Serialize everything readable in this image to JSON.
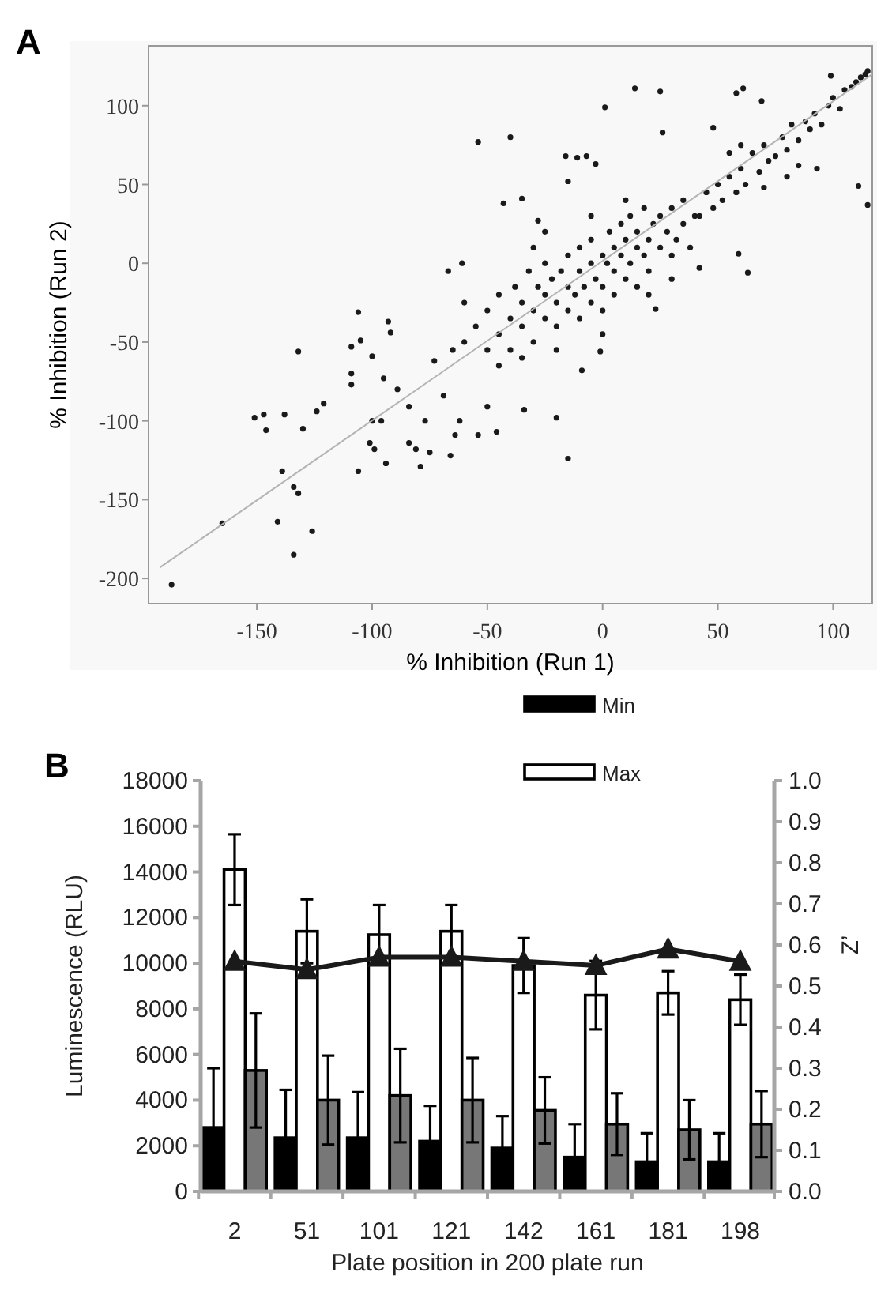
{
  "chart_data": [
    {
      "type": "scatter",
      "title": "A",
      "xlabel": "% Inhibition (Run 1)",
      "ylabel": "% Inhibition (Run 2)",
      "xlim": [
        -197,
        117
      ],
      "ylim": [
        -216,
        138
      ],
      "xticks": [
        -150,
        -100,
        -50,
        0,
        50,
        100
      ],
      "yticks": [
        -200,
        -150,
        -100,
        -50,
        0,
        50,
        100
      ],
      "grid": false,
      "marker": "circle",
      "series": [
        {
          "type": "scatter",
          "color": "#1a1a1a",
          "x": [
            -187,
            -165,
            -141,
            -134,
            -126,
            -139,
            -134,
            -132,
            -151,
            -147,
            -146,
            -138,
            -130,
            -132,
            -121,
            -124,
            -106,
            -109,
            -105,
            -109,
            -109,
            -100,
            -100,
            -101,
            -99,
            -106,
            -94,
            -96,
            -93,
            -92,
            -95,
            -89,
            -84,
            -84,
            -81,
            -79,
            -75,
            -77,
            -73,
            -69,
            -66,
            -64,
            -62,
            -67,
            -61,
            -54,
            -40,
            -54,
            -46,
            -50,
            -34,
            -20,
            -15,
            -43,
            -35,
            -28,
            -15,
            -16,
            -11,
            -7,
            -3,
            1,
            14,
            25,
            26,
            48,
            58,
            61,
            69,
            99,
            111,
            115,
            93,
            63,
            59,
            42,
            -9,
            23,
            -1,
            -55,
            -50,
            -50,
            -45,
            -45,
            -40,
            -40,
            -38,
            -35,
            -35,
            -32,
            -30,
            -30,
            -28,
            -25,
            -25,
            -25,
            -22,
            -20,
            -20,
            -18,
            -15,
            -15,
            -15,
            -12,
            -10,
            -10,
            -10,
            -8,
            -5,
            -5,
            -5,
            -3,
            0,
            0,
            0,
            2,
            3,
            5,
            5,
            5,
            8,
            8,
            10,
            10,
            12,
            12,
            15,
            15,
            15,
            18,
            18,
            20,
            20,
            22,
            25,
            25,
            28,
            30,
            30,
            32,
            35,
            35,
            38,
            40,
            -45,
            -20,
            -35,
            0,
            20,
            -60,
            -60,
            -65,
            10,
            -5,
            -25,
            30,
            -30,
            42,
            45,
            48,
            50,
            52,
            55,
            58,
            60,
            62,
            65,
            68,
            70,
            72,
            75,
            78,
            80,
            82,
            85,
            88,
            90,
            92,
            95,
            98,
            100,
            103,
            105,
            108,
            110,
            112,
            114,
            115,
            80,
            85,
            70,
            60,
            55
          ],
          "values": [
            -204,
            -165,
            -164,
            -185,
            -170,
            -132,
            -142,
            -146,
            -98,
            -96,
            -106,
            -96,
            -105,
            -56,
            -89,
            -94,
            -31,
            -53,
            -49,
            -70,
            -77,
            -59,
            -100,
            -114,
            -118,
            -132,
            -127,
            -100,
            -37,
            -44,
            -73,
            -80,
            -91,
            -114,
            -118,
            -129,
            -120,
            -100,
            -62,
            -84,
            -122,
            -109,
            -100,
            -5,
            0,
            77,
            80,
            -109,
            -107,
            -91,
            -93,
            -98,
            -124,
            38,
            41,
            27,
            52,
            68,
            67,
            68,
            63,
            99,
            111,
            109,
            83,
            86,
            108,
            111,
            103,
            119,
            49,
            37,
            60,
            -6,
            6,
            -3,
            -68,
            -29,
            -56,
            -40,
            -30,
            -55,
            -45,
            -20,
            -35,
            -55,
            -15,
            -40,
            -25,
            -5,
            -30,
            -50,
            -15,
            -35,
            -20,
            0,
            -10,
            -25,
            -40,
            -5,
            -15,
            -30,
            5,
            -20,
            -5,
            -35,
            10,
            -15,
            0,
            -25,
            15,
            -10,
            5,
            -15,
            -30,
            0,
            20,
            -5,
            10,
            -20,
            5,
            25,
            -10,
            15,
            0,
            30,
            10,
            -15,
            20,
            5,
            35,
            15,
            -5,
            25,
            10,
            30,
            20,
            5,
            35,
            15,
            25,
            40,
            10,
            30,
            -65,
            -55,
            -60,
            -45,
            -20,
            -50,
            -25,
            -55,
            40,
            30,
            20,
            -10,
            10,
            30,
            45,
            35,
            50,
            40,
            55,
            45,
            60,
            50,
            70,
            58,
            75,
            65,
            68,
            80,
            72,
            88,
            78,
            90,
            85,
            95,
            88,
            100,
            105,
            98,
            110,
            112,
            115,
            118,
            120,
            122,
            55,
            62,
            48,
            75,
            70
          ]
        },
        {
          "type": "line",
          "color": "#b3b3b3",
          "marker": "none",
          "x": [
            -192,
            117
          ],
          "values": [
            -193,
            120
          ]
        }
      ]
    },
    {
      "type": "bar",
      "title": "B",
      "xlabel": "Plate position in 200 plate run",
      "ylabel": "Luminescence (RLU)",
      "y2label": "Z’",
      "categories": [
        "2",
        "51",
        "101",
        "121",
        "142",
        "161",
        "181",
        "198"
      ],
      "ylim": [
        0,
        18000
      ],
      "yticks": [
        0,
        2000,
        4000,
        6000,
        8000,
        10000,
        12000,
        14000,
        16000,
        18000
      ],
      "y2lim": [
        0,
        1
      ],
      "y2ticks": [
        {
          "value": 0,
          "label": "0.0"
        },
        0.1,
        0.2,
        0.3,
        0.4,
        0.5,
        0.6,
        0.7,
        0.8,
        0.9,
        {
          "value": 1,
          "label": "1.0"
        }
      ],
      "grid": false,
      "legend": "top",
      "series": [
        {
          "type": "bar",
          "name": "Min",
          "color": "#000000",
          "values": [
            2800,
            2350,
            2350,
            2200,
            1900,
            1500,
            1300,
            1300
          ],
          "errors": [
            2600,
            2100,
            2000,
            1550,
            1400,
            1450,
            1250,
            1250
          ]
        },
        {
          "type": "bar",
          "name": "Max",
          "color": "#ffffff",
          "values": [
            14100,
            11400,
            11250,
            11400,
            9900,
            8600,
            8700,
            8400
          ],
          "errors": [
            1550,
            1400,
            1300,
            1150,
            1200,
            1500,
            950,
            1100
          ]
        },
        {
          "type": "bar",
          "color": "#777777",
          "values": [
            5300,
            4000,
            4200,
            4000,
            3550,
            2950,
            2700,
            2950
          ],
          "errors": [
            2500,
            1950,
            2050,
            1850,
            1450,
            1350,
            1300,
            1450
          ]
        },
        {
          "type": "line",
          "axis": "y2",
          "color": "#1a1a1a",
          "marker": "triangle",
          "values": [
            0.56,
            0.54,
            0.57,
            0.57,
            0.56,
            0.55,
            0.59,
            0.56
          ]
        }
      ]
    }
  ]
}
